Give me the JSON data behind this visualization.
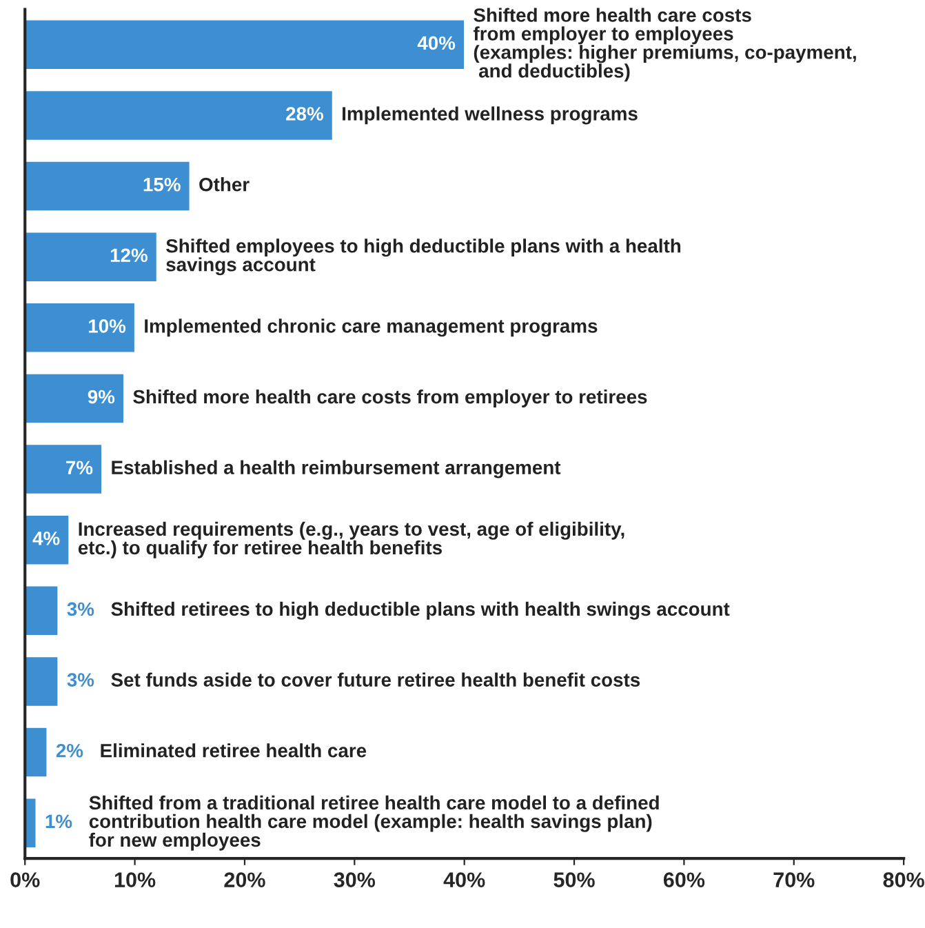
{
  "chart_data": {
    "type": "bar",
    "orientation": "horizontal",
    "categories": [
      "Shifted more health care costs\nfrom employer to employees\n(examples: higher premiums, co-payment,\n and deductibles)",
      "Implemented wellness programs",
      "Other",
      "Shifted employees to high deductible plans with a health\nsavings account",
      "Implemented chronic care management programs",
      "Shifted more health care costs from employer to retirees",
      "Established a health reimbursement arrangement",
      "Increased requirements (e.g., years to vest, age of eligibility,\netc.) to qualify for retiree health benefits",
      "Shifted retirees to high deductible plans with health swings account",
      "Set funds aside to cover future retiree health benefit costs",
      "Eliminated retiree health care",
      "Shifted from a traditional retiree health care model to a defined\ncontribution health care model (example: health savings plan)\nfor new employees"
    ],
    "values": [
      40,
      28,
      15,
      12,
      10,
      9,
      7,
      4,
      3,
      3,
      2,
      1
    ],
    "value_labels": [
      "40%",
      "28%",
      "15%",
      "12%",
      "10%",
      "9%",
      "7%",
      "4%",
      "3%",
      "3%",
      "2%",
      "1%"
    ],
    "color": "#3d8fd1",
    "xlim": [
      0,
      80
    ],
    "xticks": [
      {
        "value": 0,
        "label": "0%"
      },
      {
        "value": 10,
        "label": "10%"
      },
      {
        "value": 20,
        "label": "20%"
      },
      {
        "value": 30,
        "label": "30%"
      },
      {
        "value": 40,
        "label": "40%"
      },
      {
        "value": 50,
        "label": "50%"
      },
      {
        "value": 60,
        "label": "60%"
      },
      {
        "value": 70,
        "label": "70%"
      },
      {
        "value": 80,
        "label": "80%"
      }
    ],
    "tick_labels": "x",
    "grid": false,
    "legend": false
  }
}
